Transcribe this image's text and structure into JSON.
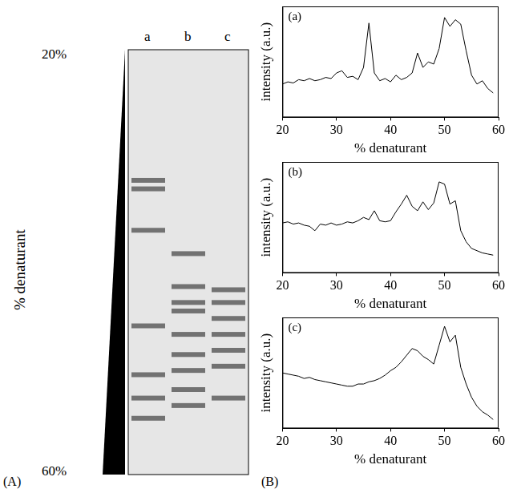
{
  "panel_labels": [
    "(A)",
    "(B)"
  ],
  "gel": {
    "lanes": [
      "a",
      "b",
      "c"
    ],
    "axis_label": "% denaturant",
    "range": [
      20,
      60
    ],
    "range_labels": [
      "20%",
      "60%"
    ],
    "bands": [
      [
        32.3,
        33.1,
        37.0,
        46.0,
        50.6,
        52.8,
        54.7
      ],
      [
        39.2,
        42.3,
        43.8,
        44.6,
        46.8,
        48.7,
        50.2,
        52.0,
        53.5
      ],
      [
        42.6,
        43.8,
        45.3,
        46.8,
        48.3,
        49.8,
        52.8
      ]
    ]
  },
  "chart_data": [
    {
      "type": "line",
      "label": "(a)",
      "x_label": "% denaturant",
      "y_label": "intensity (a.u.)",
      "x": [
        20,
        21,
        22,
        23,
        24,
        25,
        26,
        27,
        28,
        29,
        30,
        31,
        32,
        33,
        34,
        35,
        36,
        37,
        38,
        39,
        40,
        41,
        42,
        43,
        44,
        45,
        46,
        47,
        48,
        49,
        50,
        51,
        52,
        53,
        54,
        55,
        56,
        57,
        58,
        59
      ],
      "values": [
        30,
        32,
        31,
        34,
        33,
        35,
        33,
        34,
        36,
        35,
        40,
        42,
        36,
        37,
        34,
        45,
        85,
        40,
        33,
        35,
        32,
        38,
        34,
        36,
        40,
        58,
        45,
        50,
        48,
        62,
        90,
        82,
        88,
        84,
        60,
        38,
        30,
        33,
        26,
        22
      ],
      "xlim": [
        20,
        60
      ],
      "xticks": [
        20,
        30,
        40,
        50,
        60
      ],
      "ylim": [
        0,
        100
      ],
      "tick_labels": "x",
      "color": "#000000"
    },
    {
      "type": "line",
      "label": "(b)",
      "x_label": "% denaturant",
      "y_label": "intensity (a.u.)",
      "x": [
        20,
        21,
        22,
        23,
        24,
        25,
        26,
        27,
        28,
        29,
        30,
        31,
        32,
        33,
        34,
        35,
        36,
        37,
        38,
        39,
        40,
        41,
        42,
        43,
        44,
        45,
        46,
        47,
        48,
        49,
        50,
        51,
        52,
        53,
        54,
        55,
        56,
        57,
        58,
        59
      ],
      "values": [
        45,
        46,
        44,
        45,
        43,
        42,
        38,
        44,
        43,
        45,
        43,
        44,
        46,
        45,
        47,
        50,
        48,
        56,
        47,
        46,
        47,
        55,
        62,
        70,
        60,
        56,
        64,
        57,
        63,
        82,
        80,
        62,
        65,
        38,
        28,
        22,
        20,
        18,
        17,
        16
      ],
      "xlim": [
        20,
        60
      ],
      "xticks": [
        20,
        30,
        40,
        50,
        60
      ],
      "ylim": [
        0,
        100
      ],
      "tick_labels": "x",
      "color": "#000000"
    },
    {
      "type": "line",
      "label": "(c)",
      "x_label": "% denaturant",
      "y_label": "intensity (a.u.)",
      "x": [
        20,
        21,
        22,
        23,
        24,
        25,
        26,
        27,
        28,
        29,
        30,
        31,
        32,
        33,
        34,
        35,
        36,
        37,
        38,
        39,
        40,
        41,
        42,
        43,
        44,
        45,
        46,
        47,
        48,
        49,
        50,
        51,
        52,
        53,
        54,
        55,
        56,
        57,
        58,
        59
      ],
      "values": [
        50,
        49,
        48,
        47,
        45,
        46,
        44,
        43,
        42,
        41,
        40,
        39,
        38,
        38,
        40,
        40,
        42,
        43,
        45,
        48,
        52,
        55,
        60,
        66,
        72,
        70,
        65,
        62,
        58,
        75,
        92,
        78,
        84,
        55,
        40,
        28,
        20,
        15,
        12,
        8
      ],
      "xlim": [
        20,
        60
      ],
      "xticks": [
        20,
        30,
        40,
        50,
        60
      ],
      "ylim": [
        0,
        100
      ],
      "tick_labels": "x",
      "color": "#000000"
    }
  ]
}
